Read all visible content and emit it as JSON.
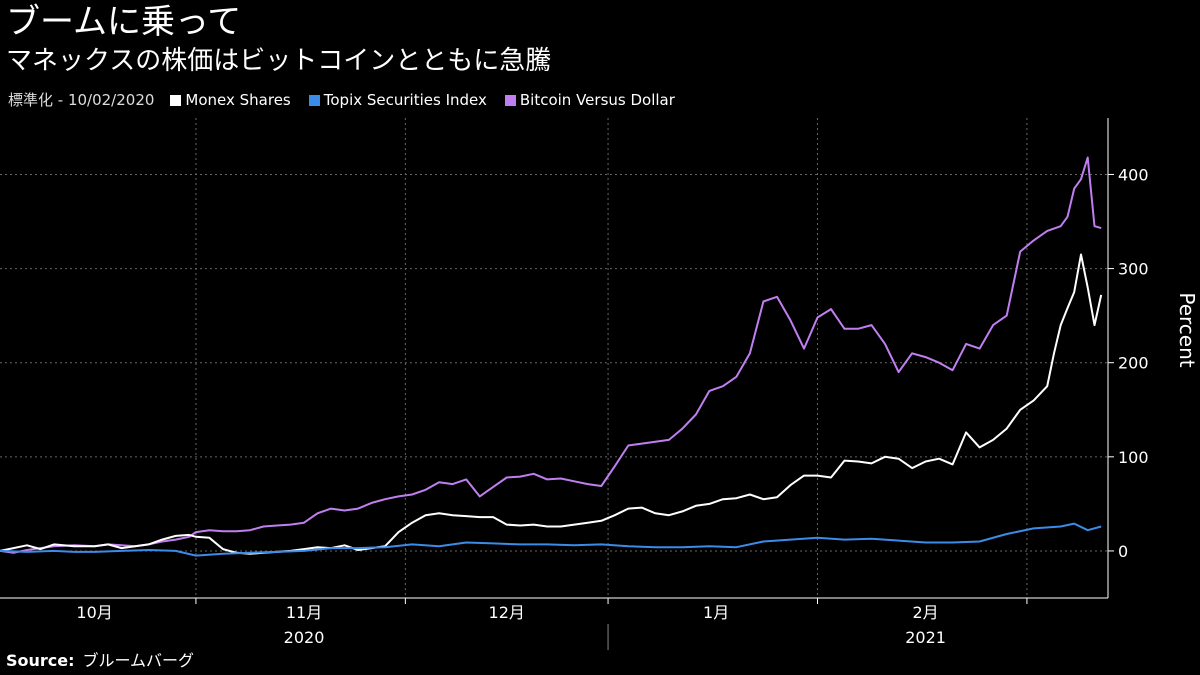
{
  "title": "ブームに乗って",
  "subtitle": "マネックスの株価はビットコインとともに急騰",
  "note": "標準化 - 10/02/2020",
  "source_label": "Source:",
  "source_value": "ブルームバーグ",
  "colors": {
    "monex": "#ffffff",
    "topix": "#3b8be8",
    "bitcoin": "#c07ff0",
    "grid": "#666666"
  },
  "chart_data": {
    "type": "line",
    "ylabel": "Percent",
    "ylim": [
      -50,
      460
    ],
    "yticks": [
      0,
      100,
      200,
      300,
      400
    ],
    "xlim": [
      "2020-09-17",
      "2021-02-28"
    ],
    "month_ticks": [
      {
        "label": "10月",
        "date": "2020-10-01"
      },
      {
        "label": "11月",
        "date": "2020-11-01"
      },
      {
        "label": "12月",
        "date": "2020-12-01"
      },
      {
        "label": "1月",
        "date": "2021-01-01"
      },
      {
        "label": "2月",
        "date": "2021-02-01"
      }
    ],
    "month_boundaries": [
      "2020-10-16",
      "2020-11-16",
      "2020-12-16",
      "2021-01-16",
      "2021-02-16"
    ],
    "year_labels": [
      {
        "label": "2020",
        "date": "2020-11-01"
      },
      {
        "label": "2021",
        "date": "2021-02-01"
      }
    ],
    "year_boundary": "2020-12-16",
    "series": [
      {
        "name": "Bitcoin Versus Dollar",
        "color_key": "bitcoin",
        "points": [
          [
            "2020-09-17",
            0
          ],
          [
            "2020-09-19",
            -2
          ],
          [
            "2020-09-21",
            1
          ],
          [
            "2020-09-23",
            3
          ],
          [
            "2020-09-25",
            5
          ],
          [
            "2020-09-28",
            6
          ],
          [
            "2020-10-01",
            5
          ],
          [
            "2020-10-03",
            7
          ],
          [
            "2020-10-05",
            6
          ],
          [
            "2020-10-07",
            5
          ],
          [
            "2020-10-09",
            7
          ],
          [
            "2020-10-11",
            10
          ],
          [
            "2020-10-13",
            12
          ],
          [
            "2020-10-15",
            15
          ],
          [
            "2020-10-16",
            20
          ],
          [
            "2020-10-18",
            22
          ],
          [
            "2020-10-20",
            21
          ],
          [
            "2020-10-22",
            21
          ],
          [
            "2020-10-24",
            22
          ],
          [
            "2020-10-26",
            26
          ],
          [
            "2020-10-28",
            27
          ],
          [
            "2020-10-30",
            28
          ],
          [
            "2020-11-01",
            30
          ],
          [
            "2020-11-03",
            40
          ],
          [
            "2020-11-05",
            45
          ],
          [
            "2020-11-07",
            43
          ],
          [
            "2020-11-09",
            45
          ],
          [
            "2020-11-11",
            51
          ],
          [
            "2020-11-13",
            55
          ],
          [
            "2020-11-15",
            58
          ],
          [
            "2020-11-17",
            60
          ],
          [
            "2020-11-19",
            65
          ],
          [
            "2020-11-21",
            73
          ],
          [
            "2020-11-23",
            71
          ],
          [
            "2020-11-25",
            76
          ],
          [
            "2020-11-27",
            58
          ],
          [
            "2020-11-29",
            68
          ],
          [
            "2020-12-01",
            78
          ],
          [
            "2020-12-03",
            79
          ],
          [
            "2020-12-05",
            82
          ],
          [
            "2020-12-07",
            76
          ],
          [
            "2020-12-09",
            77
          ],
          [
            "2020-12-11",
            74
          ],
          [
            "2020-12-13",
            71
          ],
          [
            "2020-12-15",
            69
          ],
          [
            "2020-12-17",
            90
          ],
          [
            "2020-12-19",
            112
          ],
          [
            "2020-12-21",
            114
          ],
          [
            "2020-12-23",
            116
          ],
          [
            "2020-12-25",
            118
          ],
          [
            "2020-12-27",
            130
          ],
          [
            "2020-12-29",
            145
          ],
          [
            "2020-12-31",
            170
          ],
          [
            "2021-01-02",
            175
          ],
          [
            "2021-01-04",
            185
          ],
          [
            "2021-01-06",
            210
          ],
          [
            "2021-01-08",
            265
          ],
          [
            "2021-01-10",
            270
          ],
          [
            "2021-01-12",
            245
          ],
          [
            "2021-01-14",
            215
          ],
          [
            "2021-01-16",
            248
          ],
          [
            "2021-01-18",
            257
          ],
          [
            "2021-01-20",
            236
          ],
          [
            "2021-01-22",
            236
          ],
          [
            "2021-01-24",
            240
          ],
          [
            "2021-01-26",
            220
          ],
          [
            "2021-01-28",
            190
          ],
          [
            "2021-01-30",
            210
          ],
          [
            "2021-02-01",
            206
          ],
          [
            "2021-02-03",
            200
          ],
          [
            "2021-02-05",
            192
          ],
          [
            "2021-02-07",
            220
          ],
          [
            "2021-02-09",
            215
          ],
          [
            "2021-02-11",
            240
          ],
          [
            "2021-02-13",
            250
          ],
          [
            "2021-02-15",
            318
          ],
          [
            "2021-02-17",
            330
          ],
          [
            "2021-02-19",
            340
          ],
          [
            "2021-02-21",
            345
          ],
          [
            "2021-02-22",
            355
          ],
          [
            "2021-02-23",
            385
          ],
          [
            "2021-02-24",
            395
          ],
          [
            "2021-02-25",
            418
          ],
          [
            "2021-02-26",
            345
          ],
          [
            "2021-02-27",
            343
          ]
        ]
      },
      {
        "name": "Monex Shares",
        "color_key": "monex",
        "points": [
          [
            "2020-09-17",
            0
          ],
          [
            "2020-09-19",
            3
          ],
          [
            "2020-09-21",
            6
          ],
          [
            "2020-09-23",
            2
          ],
          [
            "2020-09-25",
            7
          ],
          [
            "2020-09-28",
            5
          ],
          [
            "2020-10-01",
            5
          ],
          [
            "2020-10-03",
            7
          ],
          [
            "2020-10-05",
            3
          ],
          [
            "2020-10-07",
            5
          ],
          [
            "2020-10-09",
            7
          ],
          [
            "2020-10-11",
            12
          ],
          [
            "2020-10-13",
            16
          ],
          [
            "2020-10-15",
            17
          ],
          [
            "2020-10-16",
            15
          ],
          [
            "2020-10-18",
            14
          ],
          [
            "2020-10-20",
            2
          ],
          [
            "2020-10-22",
            -2
          ],
          [
            "2020-10-24",
            -3
          ],
          [
            "2020-10-26",
            -2
          ],
          [
            "2020-10-28",
            -1
          ],
          [
            "2020-10-30",
            0
          ],
          [
            "2020-11-01",
            2
          ],
          [
            "2020-11-03",
            4
          ],
          [
            "2020-11-05",
            3
          ],
          [
            "2020-11-07",
            6
          ],
          [
            "2020-11-09",
            1
          ],
          [
            "2020-11-11",
            3
          ],
          [
            "2020-11-13",
            5
          ],
          [
            "2020-11-15",
            20
          ],
          [
            "2020-11-17",
            30
          ],
          [
            "2020-11-19",
            38
          ],
          [
            "2020-11-21",
            40
          ],
          [
            "2020-11-23",
            38
          ],
          [
            "2020-11-25",
            37
          ],
          [
            "2020-11-27",
            36
          ],
          [
            "2020-11-29",
            36
          ],
          [
            "2020-12-01",
            28
          ],
          [
            "2020-12-03",
            27
          ],
          [
            "2020-12-05",
            28
          ],
          [
            "2020-12-07",
            26
          ],
          [
            "2020-12-09",
            26
          ],
          [
            "2020-12-11",
            28
          ],
          [
            "2020-12-13",
            30
          ],
          [
            "2020-12-15",
            32
          ],
          [
            "2020-12-17",
            38
          ],
          [
            "2020-12-19",
            45
          ],
          [
            "2020-12-21",
            46
          ],
          [
            "2020-12-23",
            40
          ],
          [
            "2020-12-25",
            38
          ],
          [
            "2020-12-27",
            42
          ],
          [
            "2020-12-29",
            48
          ],
          [
            "2020-12-31",
            50
          ],
          [
            "2021-01-02",
            55
          ],
          [
            "2021-01-04",
            56
          ],
          [
            "2021-01-06",
            60
          ],
          [
            "2021-01-08",
            55
          ],
          [
            "2021-01-10",
            57
          ],
          [
            "2021-01-12",
            70
          ],
          [
            "2021-01-14",
            80
          ],
          [
            "2021-01-16",
            80
          ],
          [
            "2021-01-18",
            78
          ],
          [
            "2021-01-20",
            96
          ],
          [
            "2021-01-22",
            95
          ],
          [
            "2021-01-24",
            93
          ],
          [
            "2021-01-26",
            100
          ],
          [
            "2021-01-28",
            98
          ],
          [
            "2021-01-30",
            88
          ],
          [
            "2021-02-01",
            95
          ],
          [
            "2021-02-03",
            98
          ],
          [
            "2021-02-05",
            92
          ],
          [
            "2021-02-07",
            126
          ],
          [
            "2021-02-09",
            110
          ],
          [
            "2021-02-11",
            118
          ],
          [
            "2021-02-13",
            130
          ],
          [
            "2021-02-15",
            150
          ],
          [
            "2021-02-17",
            160
          ],
          [
            "2021-02-19",
            175
          ],
          [
            "2021-02-20",
            210
          ],
          [
            "2021-02-21",
            240
          ],
          [
            "2021-02-22",
            258
          ],
          [
            "2021-02-23",
            275
          ],
          [
            "2021-02-24",
            315
          ],
          [
            "2021-02-25",
            280
          ],
          [
            "2021-02-26",
            240
          ],
          [
            "2021-02-27",
            272
          ]
        ]
      },
      {
        "name": "Topix Securities Index",
        "color_key": "topix",
        "points": [
          [
            "2020-09-17",
            0
          ],
          [
            "2020-09-21",
            -1
          ],
          [
            "2020-09-25",
            0
          ],
          [
            "2020-09-28",
            -1
          ],
          [
            "2020-10-01",
            -1
          ],
          [
            "2020-10-05",
            0
          ],
          [
            "2020-10-09",
            1
          ],
          [
            "2020-10-13",
            0
          ],
          [
            "2020-10-16",
            -5
          ],
          [
            "2020-10-20",
            -3
          ],
          [
            "2020-10-24",
            -2
          ],
          [
            "2020-10-28",
            -1
          ],
          [
            "2020-11-01",
            0
          ],
          [
            "2020-11-05",
            3
          ],
          [
            "2020-11-09",
            3
          ],
          [
            "2020-11-13",
            4
          ],
          [
            "2020-11-17",
            7
          ],
          [
            "2020-11-21",
            5
          ],
          [
            "2020-11-25",
            9
          ],
          [
            "2020-11-29",
            8
          ],
          [
            "2020-12-03",
            7
          ],
          [
            "2020-12-07",
            7
          ],
          [
            "2020-12-11",
            6
          ],
          [
            "2020-12-15",
            7
          ],
          [
            "2020-12-19",
            5
          ],
          [
            "2020-12-23",
            4
          ],
          [
            "2020-12-27",
            4
          ],
          [
            "2020-12-31",
            5
          ],
          [
            "2021-01-04",
            4
          ],
          [
            "2021-01-08",
            10
          ],
          [
            "2021-01-12",
            12
          ],
          [
            "2021-01-16",
            14
          ],
          [
            "2021-01-20",
            12
          ],
          [
            "2021-01-24",
            13
          ],
          [
            "2021-01-28",
            11
          ],
          [
            "2021-02-01",
            9
          ],
          [
            "2021-02-05",
            9
          ],
          [
            "2021-02-09",
            10
          ],
          [
            "2021-02-13",
            18
          ],
          [
            "2021-02-17",
            24
          ],
          [
            "2021-02-21",
            26
          ],
          [
            "2021-02-23",
            29
          ],
          [
            "2021-02-25",
            22
          ],
          [
            "2021-02-27",
            26
          ]
        ]
      }
    ]
  }
}
